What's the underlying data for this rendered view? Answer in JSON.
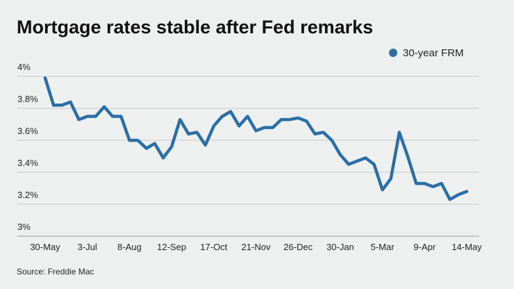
{
  "chart_data": {
    "type": "line",
    "title": "Mortgage rates stable after Fed remarks",
    "source": "Source: Freddie Mac",
    "categories": [
      "30-May",
      null,
      null,
      null,
      null,
      "3-Jul",
      null,
      null,
      null,
      null,
      "8-Aug",
      null,
      null,
      null,
      null,
      "12-Sep",
      null,
      null,
      null,
      null,
      "17-Oct",
      null,
      null,
      null,
      null,
      "21-Nov",
      null,
      null,
      null,
      null,
      "26-Dec",
      null,
      null,
      null,
      null,
      "30-Jan",
      null,
      null,
      null,
      null,
      "5-Mar",
      null,
      null,
      null,
      null,
      "9-Apr",
      null,
      null,
      null,
      null,
      "14-May"
    ],
    "series": [
      {
        "name": "30-year FRM",
        "color": "#2b6ea6",
        "values": [
          3.99,
          3.82,
          3.82,
          3.84,
          3.73,
          3.75,
          3.75,
          3.81,
          3.75,
          3.75,
          3.6,
          3.6,
          3.55,
          3.58,
          3.49,
          3.56,
          3.73,
          3.64,
          3.65,
          3.57,
          3.69,
          3.75,
          3.78,
          3.69,
          3.75,
          3.66,
          3.68,
          3.68,
          3.73,
          3.73,
          3.74,
          3.72,
          3.64,
          3.65,
          3.6,
          3.51,
          3.45,
          3.47,
          3.49,
          3.45,
          3.29,
          3.36,
          3.65,
          3.5,
          3.33,
          3.33,
          3.31,
          3.33,
          3.23,
          3.26,
          3.28
        ]
      }
    ],
    "ylim": [
      3,
      4
    ],
    "yticks": [
      {
        "value": 3,
        "label": "3%"
      },
      {
        "value": 3.2,
        "label": "3.2%"
      },
      {
        "value": 3.4,
        "label": "3.4%"
      },
      {
        "value": 3.6,
        "label": "3.6%"
      },
      {
        "value": 3.8,
        "label": "3.8%"
      },
      {
        "value": 4,
        "label": "4%"
      }
    ],
    "grid": true,
    "legend": "top-right"
  }
}
